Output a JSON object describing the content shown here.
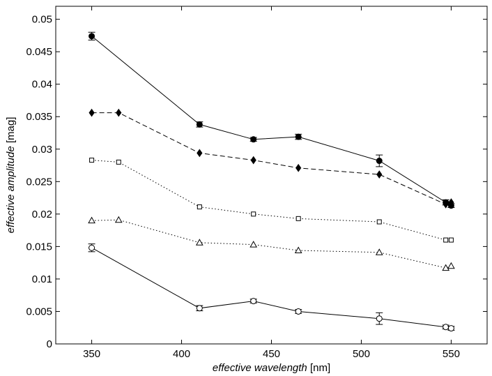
{
  "chart_data": {
    "type": "line",
    "title": "",
    "xlabel_italic": "effective wavelength",
    "xlabel_unit": " [nm]",
    "ylabel_italic": "effective amplitude",
    "ylabel_unit": " [mag]",
    "xlim": [
      330,
      570
    ],
    "ylim": [
      0,
      0.052
    ],
    "xticks": [
      350,
      400,
      450,
      500,
      550
    ],
    "xtick_labels": [
      "350",
      "400",
      "450",
      "500",
      "550"
    ],
    "yticks": [
      0,
      0.005,
      0.01,
      0.015,
      0.02,
      0.025,
      0.03,
      0.035,
      0.04,
      0.045,
      0.05
    ],
    "ytick_labels": [
      "0",
      "0.005",
      "0.01",
      "0.015",
      "0.02",
      "0.025",
      "0.03",
      "0.035",
      "0.04",
      "0.045",
      "0.05"
    ],
    "grid": false,
    "series": [
      {
        "name": "filled circles",
        "marker": "circle-filled",
        "line": "solid",
        "points": [
          {
            "x": 350,
            "y": 0.0474,
            "err": 0.0006
          },
          {
            "x": 410,
            "y": 0.0338,
            "err": 0.0004
          },
          {
            "x": 440,
            "y": 0.0315,
            "err": 0.0003
          },
          {
            "x": 465,
            "y": 0.0319,
            "err": 0.0004
          },
          {
            "x": 510,
            "y": 0.0282,
            "err": 0.0009
          },
          {
            "x": 547,
            "y": 0.0218,
            "err": 0.0004
          },
          {
            "x": 550,
            "y": 0.0213,
            "err": 0.0003
          }
        ]
      },
      {
        "name": "filled diamonds",
        "marker": "diamond-filled",
        "line": "dashed",
        "points": [
          {
            "x": 350,
            "y": 0.0356
          },
          {
            "x": 365,
            "y": 0.0356
          },
          {
            "x": 410,
            "y": 0.0294
          },
          {
            "x": 440,
            "y": 0.0283
          },
          {
            "x": 465,
            "y": 0.0271
          },
          {
            "x": 510,
            "y": 0.0261
          },
          {
            "x": 547,
            "y": 0.0215
          },
          {
            "x": 550,
            "y": 0.0218
          }
        ]
      },
      {
        "name": "open squares",
        "marker": "square-open",
        "line": "dotted",
        "points": [
          {
            "x": 350,
            "y": 0.0283
          },
          {
            "x": 365,
            "y": 0.028
          },
          {
            "x": 410,
            "y": 0.0211
          },
          {
            "x": 440,
            "y": 0.02
          },
          {
            "x": 465,
            "y": 0.0193
          },
          {
            "x": 510,
            "y": 0.0188
          },
          {
            "x": 547,
            "y": 0.016
          },
          {
            "x": 550,
            "y": 0.016
          }
        ]
      },
      {
        "name": "open triangles",
        "marker": "triangle-open",
        "line": "dotted",
        "points": [
          {
            "x": 350,
            "y": 0.019
          },
          {
            "x": 365,
            "y": 0.0191
          },
          {
            "x": 410,
            "y": 0.0156
          },
          {
            "x": 440,
            "y": 0.0153
          },
          {
            "x": 465,
            "y": 0.0144
          },
          {
            "x": 510,
            "y": 0.0141
          },
          {
            "x": 547,
            "y": 0.0117
          },
          {
            "x": 550,
            "y": 0.012
          }
        ]
      },
      {
        "name": "open circles",
        "marker": "circle-open",
        "line": "solid",
        "points": [
          {
            "x": 350,
            "y": 0.0148,
            "err": 0.0006
          },
          {
            "x": 410,
            "y": 0.0055,
            "err": 0.0004
          },
          {
            "x": 440,
            "y": 0.0066,
            "err": 0.0003
          },
          {
            "x": 465,
            "y": 0.005,
            "err": 0.0003
          },
          {
            "x": 510,
            "y": 0.0039,
            "err": 0.0009
          },
          {
            "x": 547,
            "y": 0.0026,
            "err": 0.0003
          },
          {
            "x": 550,
            "y": 0.0024,
            "err": 0.0003
          }
        ]
      }
    ]
  }
}
